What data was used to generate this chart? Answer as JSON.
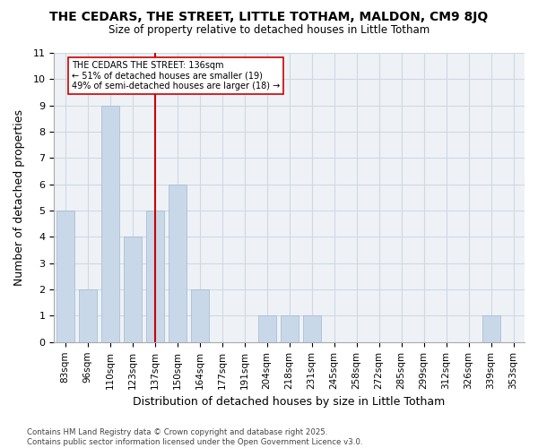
{
  "title": "THE CEDARS, THE STREET, LITTLE TOTHAM, MALDON, CM9 8JQ",
  "subtitle": "Size of property relative to detached houses in Little Totham",
  "xlabel": "Distribution of detached houses by size in Little Totham",
  "ylabel": "Number of detached properties",
  "bins": [
    "83sqm",
    "96sqm",
    "110sqm",
    "123sqm",
    "137sqm",
    "150sqm",
    "164sqm",
    "177sqm",
    "191sqm",
    "204sqm",
    "218sqm",
    "231sqm",
    "245sqm",
    "258sqm",
    "272sqm",
    "285sqm",
    "299sqm",
    "312sqm",
    "326sqm",
    "339sqm",
    "353sqm"
  ],
  "counts": [
    5,
    2,
    9,
    4,
    5,
    6,
    2,
    0,
    0,
    1,
    1,
    1,
    0,
    0,
    0,
    0,
    0,
    0,
    0,
    1,
    0
  ],
  "annotation_title": "THE CEDARS THE STREET: 136sqm",
  "annotation_line1": "← 51% of detached houses are smaller (19)",
  "annotation_line2": "49% of semi-detached houses are larger (18) →",
  "bar_color": "#c8d8e8",
  "bar_edge_color": "#a0b8cc",
  "marker_color": "#cc0000",
  "grid_color": "#d0d8e0",
  "bg_color": "#eef2f7",
  "footer": "Contains HM Land Registry data © Crown copyright and database right 2025.\nContains public sector information licensed under the Open Government Licence v3.0.",
  "ylim": [
    0,
    11
  ],
  "yticks": [
    0,
    1,
    2,
    3,
    4,
    5,
    6,
    7,
    8,
    9,
    10,
    11
  ],
  "marker_bin": "137sqm"
}
